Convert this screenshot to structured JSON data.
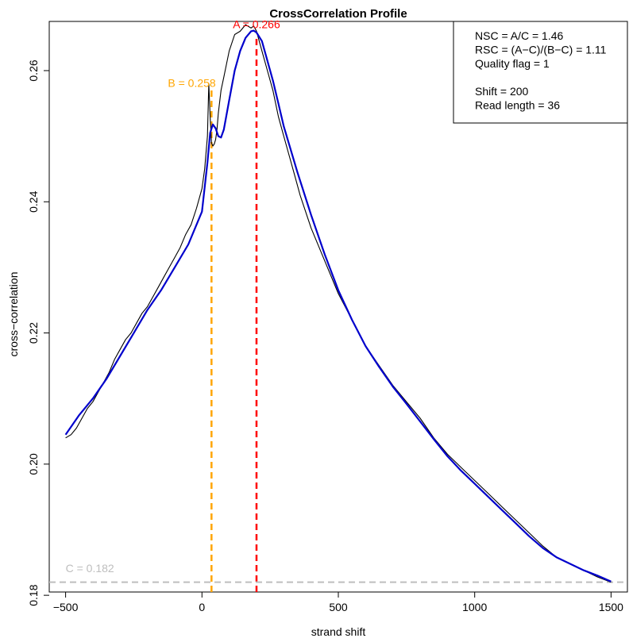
{
  "chart_data": {
    "type": "line",
    "title": "CrossCorrelation Profile",
    "xlabel": "strand shift",
    "ylabel": "cross−correlation",
    "xlim": [
      -560,
      1560
    ],
    "ylim": [
      0.1805,
      0.2675
    ],
    "xticks": [
      -500,
      0,
      500,
      1000,
      1500
    ],
    "xtick_labels": [
      "−500",
      "0",
      "500",
      "1000",
      "1500"
    ],
    "yticks": [
      0.18,
      0.2,
      0.22,
      0.24,
      0.26
    ],
    "ytick_labels": [
      "0.18",
      "0.20",
      "0.22",
      "0.24",
      "0.26"
    ],
    "grid": false,
    "series": [
      {
        "role": "raw",
        "color": "#000000",
        "x": [
          -500,
          -480,
          -460,
          -440,
          -420,
          -400,
          -380,
          -360,
          -340,
          -320,
          -300,
          -280,
          -260,
          -240,
          -220,
          -200,
          -180,
          -160,
          -140,
          -120,
          -100,
          -80,
          -60,
          -40,
          -20,
          0,
          10,
          20,
          25,
          30,
          35,
          40,
          45,
          50,
          55,
          60,
          70,
          80,
          90,
          100,
          120,
          140,
          160,
          180,
          190,
          200,
          220,
          240,
          260,
          280,
          300,
          320,
          340,
          360,
          380,
          400,
          450,
          500,
          550,
          600,
          650,
          700,
          750,
          800,
          850,
          900,
          950,
          1000,
          1050,
          1100,
          1150,
          1200,
          1250,
          1300,
          1350,
          1400,
          1450,
          1500
        ],
        "y": [
          0.204,
          0.2045,
          0.2055,
          0.207,
          0.2085,
          0.2095,
          0.211,
          0.2125,
          0.214,
          0.216,
          0.2175,
          0.219,
          0.22,
          0.2215,
          0.223,
          0.224,
          0.2255,
          0.227,
          0.2285,
          0.23,
          0.2315,
          0.233,
          0.235,
          0.2365,
          0.239,
          0.242,
          0.245,
          0.25,
          0.258,
          0.253,
          0.249,
          0.2485,
          0.2488,
          0.2495,
          0.251,
          0.2535,
          0.257,
          0.259,
          0.261,
          0.263,
          0.2655,
          0.266,
          0.267,
          0.2665,
          0.2668,
          0.266,
          0.263,
          0.26,
          0.257,
          0.253,
          0.25,
          0.247,
          0.244,
          0.241,
          0.2385,
          0.236,
          0.231,
          0.226,
          0.222,
          0.218,
          0.215,
          0.212,
          0.2095,
          0.207,
          0.204,
          0.2015,
          0.1995,
          0.1975,
          0.1955,
          0.1935,
          0.1915,
          0.1895,
          0.1875,
          0.1858,
          0.1848,
          0.1838,
          0.1828,
          0.182
        ]
      },
      {
        "role": "smoothed",
        "color": "#0000cc",
        "x": [
          -500,
          -450,
          -400,
          -350,
          -300,
          -250,
          -200,
          -150,
          -100,
          -50,
          0,
          20,
          30,
          40,
          50,
          60,
          70,
          80,
          100,
          120,
          140,
          160,
          180,
          190,
          200,
          220,
          240,
          260,
          280,
          300,
          350,
          400,
          450,
          500,
          550,
          600,
          650,
          700,
          750,
          800,
          850,
          900,
          950,
          1000,
          1050,
          1100,
          1150,
          1200,
          1250,
          1300,
          1350,
          1400,
          1450,
          1500
        ],
        "y": [
          0.2045,
          0.2075,
          0.21,
          0.213,
          0.2165,
          0.22,
          0.2235,
          0.2265,
          0.23,
          0.2335,
          0.2385,
          0.246,
          0.2505,
          0.2518,
          0.2512,
          0.25,
          0.2498,
          0.251,
          0.2555,
          0.26,
          0.263,
          0.265,
          0.266,
          0.2661,
          0.2658,
          0.2645,
          0.2615,
          0.2585,
          0.255,
          0.2515,
          0.2445,
          0.238,
          0.232,
          0.2265,
          0.222,
          0.218,
          0.2148,
          0.2118,
          0.2092,
          0.2065,
          0.2038,
          0.2012,
          0.199,
          0.197,
          0.195,
          0.193,
          0.191,
          0.189,
          0.1872,
          0.1858,
          0.1848,
          0.1838,
          0.183,
          0.1821
        ]
      }
    ],
    "reference_lines": [
      {
        "axis": "x",
        "value": 200,
        "color": "#ff0000",
        "dash": true
      },
      {
        "axis": "x",
        "value": 35,
        "color": "#ffa500",
        "dash": true
      },
      {
        "axis": "y",
        "value": 0.182,
        "color": "#bebebe",
        "dash": true
      }
    ],
    "annotations": [
      {
        "id": "A",
        "text": "A = 0.266",
        "x": 200,
        "y": 0.2665,
        "color": "#ff0000"
      },
      {
        "id": "B",
        "text": "B = 0.258",
        "x": -125,
        "y": 0.2575,
        "color": "#ffa500"
      },
      {
        "id": "C",
        "text": "C = 0.182",
        "x": -500,
        "y": 0.1835,
        "color": "#bebebe"
      }
    ],
    "legend_position": "top-right",
    "legend_lines": [
      "NSC = A/C = 1.46",
      "RSC = (A−C)/(B−C) = 1.11",
      "Quality flag = 1",
      "",
      "Shift = 200",
      "Read length = 36"
    ]
  }
}
